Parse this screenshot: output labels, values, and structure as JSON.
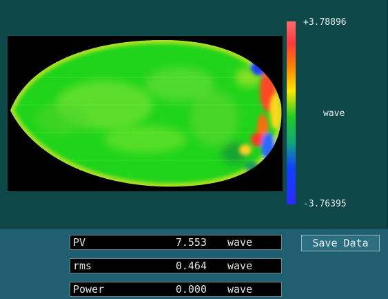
{
  "colorbar": {
    "max_label": "+3.78896",
    "min_label": "-3.76395",
    "unit_label": "wave",
    "max_value": 3.78896,
    "min_value": -3.76395
  },
  "readouts": [
    {
      "label": "PV",
      "value": "7.553",
      "unit": "wave"
    },
    {
      "label": "rms",
      "value": "0.464",
      "unit": "wave"
    },
    {
      "label": "Power",
      "value": "0.000",
      "unit": "wave"
    }
  ],
  "save_button": {
    "label": "Save Data"
  }
}
